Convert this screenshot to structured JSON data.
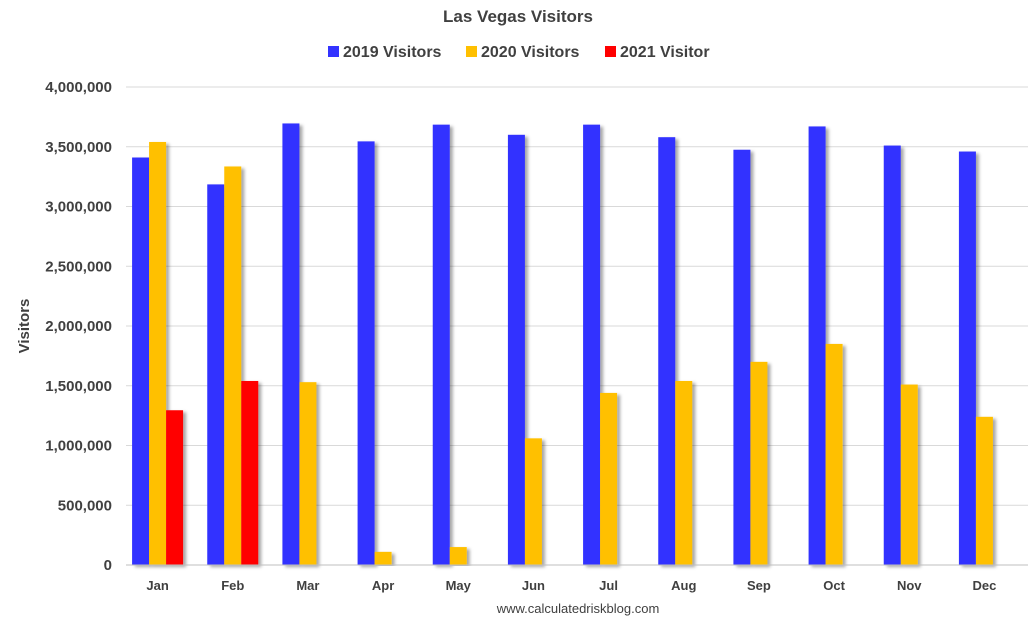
{
  "chart_data": {
    "type": "bar",
    "title": "Las Vegas Visitors",
    "ylabel": "Visitors",
    "xlabel": "",
    "ylim": [
      0,
      4000000
    ],
    "yticks": [
      0,
      500000,
      1000000,
      1500000,
      2000000,
      2500000,
      3000000,
      3500000,
      4000000
    ],
    "ytick_labels": [
      "0",
      "500,000",
      "1,000,000",
      "1,500,000",
      "2,000,000",
      "2,500,000",
      "3,000,000",
      "3,500,000",
      "4,000,000"
    ],
    "grid": true,
    "legend_position": "top",
    "categories": [
      "Jan",
      "Feb",
      "Mar",
      "Apr",
      "May",
      "Jun",
      "Jul",
      "Aug",
      "Sep",
      "Oct",
      "Nov",
      "Dec"
    ],
    "series": [
      {
        "name": "2019 Visitors",
        "color": "#3333ff",
        "values": [
          3410000,
          3185000,
          3695000,
          3545000,
          3685000,
          3600000,
          3685000,
          3580000,
          3475000,
          3670000,
          3510000,
          3460000
        ]
      },
      {
        "name": "2020 Visitors",
        "color": "#ffc000",
        "values": [
          3540000,
          3335000,
          1530000,
          110000,
          150000,
          1060000,
          1440000,
          1540000,
          1700000,
          1850000,
          1510000,
          1240000
        ]
      },
      {
        "name": "2021 Visitor",
        "color": "#ff0000",
        "values": [
          1295000,
          1540000,
          null,
          null,
          null,
          null,
          null,
          null,
          null,
          null,
          null,
          null
        ]
      }
    ],
    "source_note": "www.calculatedriskblog.com"
  }
}
